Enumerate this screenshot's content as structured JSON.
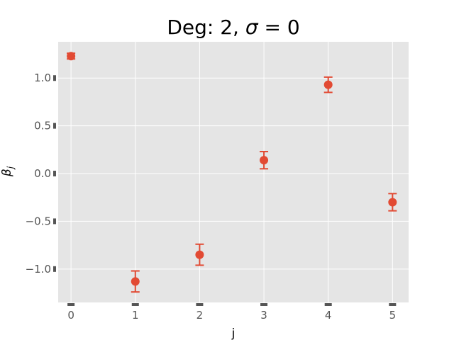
{
  "chart_data": {
    "type": "scatter",
    "title": "Deg: 2, σ = 0",
    "xlabel": "j",
    "ylabel": "β_j",
    "xlim": [
      -0.2,
      5.25
    ],
    "ylim": [
      -1.35,
      1.38
    ],
    "x_ticks": [
      0,
      1,
      2,
      3,
      4,
      5
    ],
    "x_tick_labels": [
      "0",
      "1",
      "2",
      "3",
      "4",
      "5"
    ],
    "y_ticks": [
      -1.0,
      -0.5,
      0.0,
      0.5,
      1.0
    ],
    "y_tick_labels": [
      "−1.0",
      "−0.5",
      "0.0",
      "0.5",
      "1.0"
    ],
    "grid": true,
    "style": "ggplot",
    "colors": {
      "background": "#e5e5e5",
      "grid": "#ffffff",
      "marker": "#e24a33",
      "tick": "#555555"
    },
    "series": [
      {
        "x": [
          0,
          1,
          2,
          3,
          4,
          5
        ],
        "y": [
          1.23,
          -1.13,
          -0.85,
          0.14,
          0.93,
          -0.3
        ],
        "yerr": [
          0.03,
          0.11,
          0.11,
          0.09,
          0.08,
          0.09
        ]
      }
    ]
  }
}
